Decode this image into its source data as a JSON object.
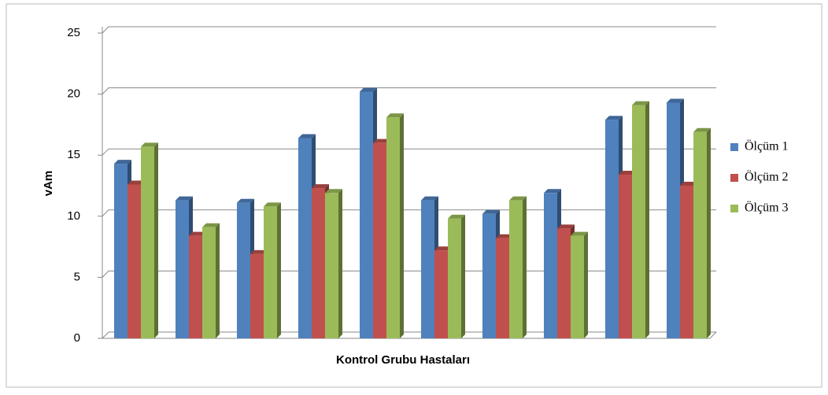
{
  "chart_data": {
    "type": "bar",
    "categories": [
      null,
      null,
      null,
      null,
      null,
      null,
      null,
      null,
      null,
      null
    ],
    "series": [
      {
        "name": "Ölçüm 1",
        "color": "#4f81bd",
        "values": [
          14.3,
          11.3,
          11.1,
          16.4,
          20.2,
          11.3,
          10.2,
          11.9,
          17.9,
          19.3
        ]
      },
      {
        "name": "Ölçüm 2",
        "color": "#c0504d",
        "values": [
          12.6,
          8.4,
          6.9,
          12.3,
          16.0,
          7.2,
          8.2,
          9.0,
          13.4,
          12.5
        ]
      },
      {
        "name": "Ölçüm 3",
        "color": "#9bbb59",
        "values": [
          15.7,
          9.1,
          10.8,
          11.9,
          18.1,
          9.8,
          11.3,
          8.4,
          19.1,
          16.9
        ]
      }
    ],
    "x_label": "Kontrol Grubu Hastaları",
    "y_label": "vAm",
    "ylim": [
      0,
      25
    ],
    "yticks": [
      0,
      5,
      10,
      15,
      20,
      25
    ],
    "grid": true,
    "legend": "right"
  }
}
